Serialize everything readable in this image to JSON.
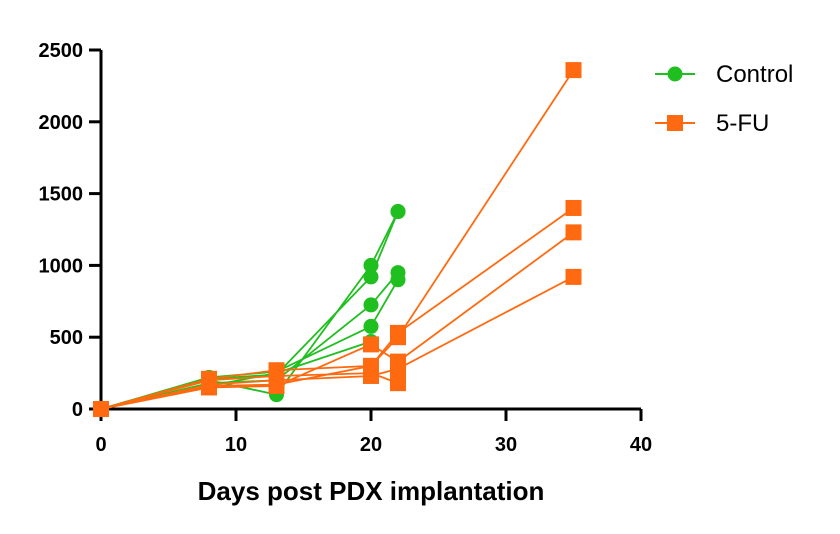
{
  "chart_data": {
    "type": "line",
    "title": "",
    "xlabel": "Days post PDX implantation",
    "ylabel": "",
    "xlim": [
      0,
      40
    ],
    "ylim": [
      0,
      2500
    ],
    "xticks": [
      0,
      10,
      20,
      30,
      40
    ],
    "yticks": [
      0,
      500,
      1000,
      1500,
      2000,
      2500
    ],
    "grid": false,
    "legend_position": "top-right",
    "groups": [
      {
        "name": "Control",
        "color": "#1fbf1f",
        "marker": "circle",
        "series": [
          {
            "x": [
              0,
              8,
              13,
              20,
              22
            ],
            "y": [
              0,
              200,
              100,
              1000,
              1375
            ]
          },
          {
            "x": [
              0,
              8,
              13,
              20,
              22
            ],
            "y": [
              0,
              210,
              240,
              920,
              1375
            ]
          },
          {
            "x": [
              0,
              8,
              13,
              20,
              22
            ],
            "y": [
              0,
              180,
              200,
              725,
              950
            ]
          },
          {
            "x": [
              0,
              8,
              13,
              20,
              22
            ],
            "y": [
              0,
              220,
              260,
              575,
              900
            ]
          },
          {
            "x": [
              0,
              8,
              13,
              20
            ],
            "y": [
              0,
              160,
              250,
              470
            ]
          }
        ]
      },
      {
        "name": "5-FU",
        "color": "#ff6a10",
        "marker": "square",
        "series": [
          {
            "x": [
              0,
              8,
              13,
              20,
              22,
              35
            ],
            "y": [
              0,
              210,
              270,
              300,
              500,
              2360
            ]
          },
          {
            "x": [
              0,
              8,
              13,
              20,
              22,
              35
            ],
            "y": [
              0,
              160,
              170,
              300,
              530,
              1400
            ]
          },
          {
            "x": [
              0,
              8,
              13,
              20,
              22,
              35
            ],
            "y": [
              0,
              150,
              160,
              450,
              330,
              1230
            ]
          },
          {
            "x": [
              0,
              8,
              13,
              20,
              22,
              35
            ],
            "y": [
              0,
              170,
              200,
              230,
              280,
              920
            ]
          },
          {
            "x": [
              0,
              8,
              13,
              20,
              22
            ],
            "y": [
              0,
              200,
              230,
              250,
              180
            ]
          }
        ]
      }
    ]
  }
}
